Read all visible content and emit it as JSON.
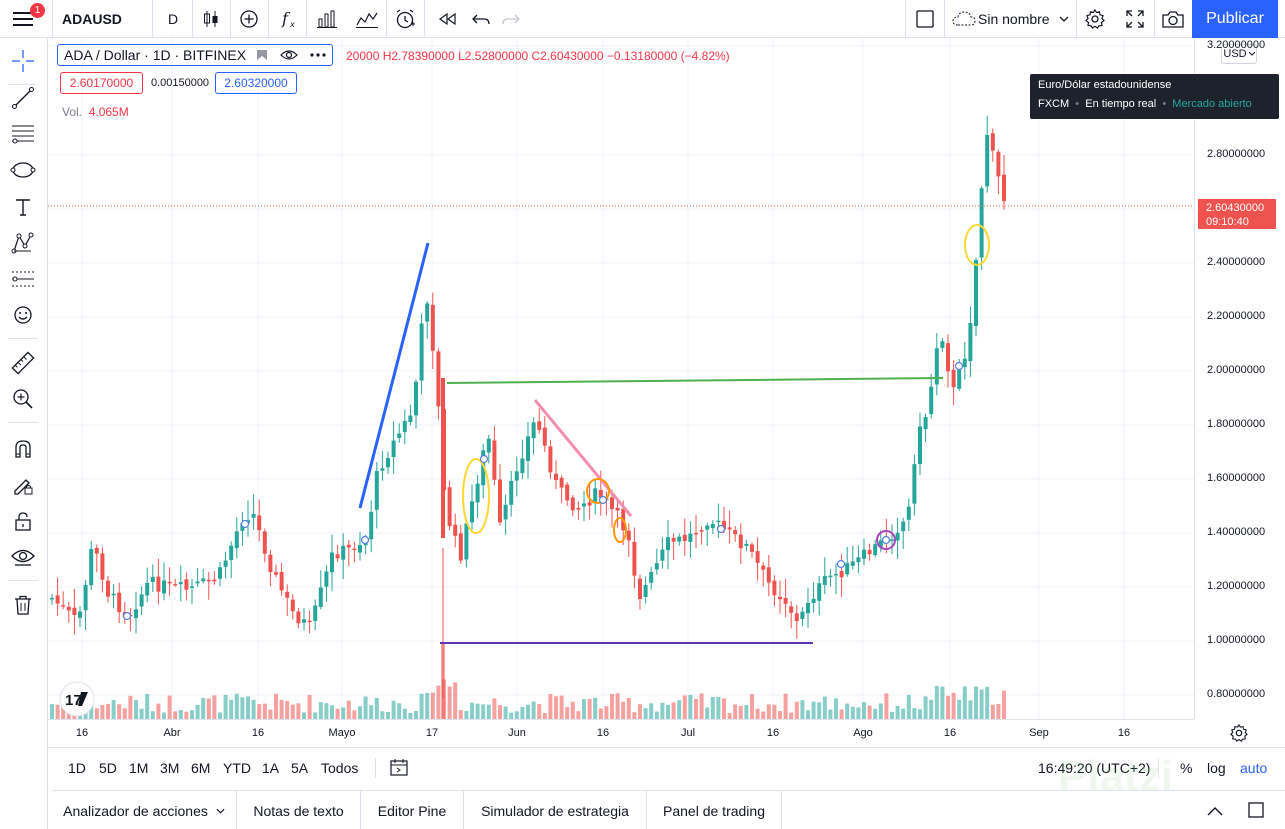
{
  "toolbar": {
    "notification_count": "1",
    "symbol": "ADAUSD",
    "interval": "D",
    "layout_name": "Sin nombre",
    "publish_label": "Publicar"
  },
  "legend": {
    "title": "ADA / Dollar · 1D · BITFINEX",
    "ohlc_text": "20000 H2.78390000 L2.52800000 C2.60430000 −0.13180000 (−4.82%)",
    "sell_price": "2.60170000",
    "spread": "0.00150000",
    "buy_price": "2.60320000",
    "vol_label": "Vol.",
    "vol_value": "4.065M"
  },
  "tooltip": {
    "title": "Euro/Dólar estadounidense",
    "exchange": "FXCM",
    "mode": "En tiempo real",
    "status": "Mercado abierto"
  },
  "price_axis": {
    "currency": "USD",
    "labels": [
      "3.20000000",
      "2.80000000",
      "2.40000000",
      "2.20000000",
      "2.00000000",
      "1.80000000",
      "1.60000000",
      "1.40000000",
      "1.20000000",
      "1.00000000",
      "0.80000000"
    ],
    "last_price": "2.60430000",
    "countdown": "09:10:40"
  },
  "time_axis": {
    "labels": [
      "16",
      "Abr",
      "16",
      "Mayo",
      "17",
      "Jun",
      "16",
      "Jul",
      "16",
      "Ago",
      "16",
      "Sep",
      "16"
    ]
  },
  "range_bar": {
    "ranges": [
      "1D",
      "5D",
      "1M",
      "3M",
      "6M",
      "YTD",
      "1A",
      "5A",
      "Todos"
    ],
    "clock": "16:49:20 (UTC+2)",
    "percent": "%",
    "log": "log",
    "auto": "auto"
  },
  "bottom_tabs": [
    "Analizador de acciones",
    "Notas de texto",
    "Editor Pine",
    "Simulador de estrategia",
    "Panel de trading"
  ],
  "watermark": "Platzi",
  "colors": {
    "up": "#26a69a",
    "down": "#ef5350",
    "accent": "#2962ff",
    "drawing_blue": "#2962ff",
    "drawing_green": "#4caf50",
    "drawing_pink": "#f48fb1",
    "drawing_purple": "#5e35b1",
    "highlight_yellow": "#fdd835",
    "highlight_orange": "#ff9800",
    "highlight_magenta": "#ab47bc"
  }
}
